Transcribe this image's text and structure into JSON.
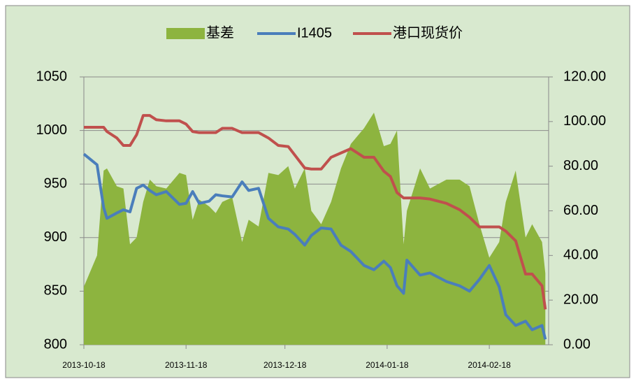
{
  "chart_data": {
    "type": "area_line",
    "x": [
      "2013-10-18",
      "2013-10-22",
      "2013-10-24",
      "2013-10-25",
      "2013-10-28",
      "2013-10-30",
      "2013-11-01",
      "2013-11-03",
      "2013-11-05",
      "2013-11-07",
      "2013-11-09",
      "2013-11-12",
      "2013-11-16",
      "2013-11-18",
      "2013-11-20",
      "2013-11-22",
      "2013-11-25",
      "2013-11-27",
      "2013-11-29",
      "2013-12-02",
      "2013-12-05",
      "2013-12-07",
      "2013-12-10",
      "2013-12-13",
      "2013-12-16",
      "2013-12-19",
      "2013-12-21",
      "2013-12-24",
      "2013-12-26",
      "2013-12-29",
      "2014-01-01",
      "2014-01-04",
      "2014-01-07",
      "2014-01-11",
      "2014-01-14",
      "2014-01-17",
      "2014-01-19",
      "2014-01-21",
      "2014-01-23",
      "2014-01-24",
      "2014-01-28",
      "2014-01-31",
      "2014-02-05",
      "2014-02-09",
      "2014-02-12",
      "2014-02-15",
      "2014-02-18",
      "2014-02-21",
      "2014-02-23",
      "2014-02-26",
      "2014-03-01",
      "2014-03-03",
      "2014-03-06",
      "2014-03-07"
    ],
    "series": [
      {
        "name": "基差",
        "color": "#8db43f",
        "axis": "y2",
        "kind": "area",
        "values": [
          26,
          40,
          78,
          79,
          71,
          70,
          45,
          48,
          64,
          74,
          71,
          70,
          77,
          76,
          56,
          65,
          62,
          59,
          64,
          66,
          46,
          56,
          53,
          77,
          76,
          80,
          70,
          79,
          60,
          54,
          64,
          79,
          90,
          97,
          104,
          89,
          90,
          96,
          45,
          60,
          79,
          70,
          74,
          74,
          71,
          54,
          39,
          46,
          64,
          78,
          48,
          54,
          46,
          32
        ]
      },
      {
        "name": "I1405",
        "color": "#4a7ebb",
        "kind": "line",
        "values": [
          978,
          968,
          928,
          918,
          923,
          926,
          924,
          946,
          949,
          944,
          940,
          943,
          931,
          932,
          943,
          932,
          934,
          940,
          939,
          938,
          952,
          944,
          946,
          918,
          910,
          908,
          903,
          893,
          902,
          909,
          908,
          893,
          887,
          874,
          870,
          878,
          872,
          855,
          848,
          879,
          865,
          867,
          859,
          855,
          850,
          861,
          874,
          854,
          828,
          818,
          822,
          814,
          818,
          805
        ]
      },
      {
        "name": "港口现货价",
        "color": "#c0504d",
        "kind": "line",
        "values": [
          1003,
          1003,
          1003,
          999,
          993,
          986,
          986,
          996,
          1014,
          1014,
          1010,
          1009,
          1009,
          1006,
          999,
          998,
          998,
          998,
          1002,
          1002,
          998,
          998,
          998,
          993,
          986,
          985,
          977,
          965,
          964,
          964,
          975,
          979,
          983,
          975,
          975,
          962,
          957,
          942,
          937,
          937,
          937,
          936,
          932,
          926,
          919,
          910,
          910,
          910,
          906,
          897,
          866,
          866,
          855,
          833
        ]
      }
    ],
    "xlim": [
      "2013-10-18",
      "2014-03-08"
    ],
    "xticks": [
      "2013-10-18",
      "2013-11-18",
      "2013-12-18",
      "2014-01-18",
      "2014-02-18"
    ],
    "ylim": [
      800,
      1050
    ],
    "yticks": [
      800,
      850,
      900,
      950,
      1000,
      1050
    ],
    "y2lim": [
      0,
      120
    ],
    "y2ticks": [
      {
        "value": 0,
        "label": "0.00"
      },
      {
        "value": 20,
        "label": "20.00"
      },
      {
        "value": 40,
        "label": "40.00"
      },
      {
        "value": 60,
        "label": "60.00"
      },
      {
        "value": 80,
        "label": "80.00"
      },
      {
        "value": 100,
        "label": "100.00"
      },
      {
        "value": 120,
        "label": "120.00"
      }
    ],
    "grid": true,
    "legend": "top"
  }
}
